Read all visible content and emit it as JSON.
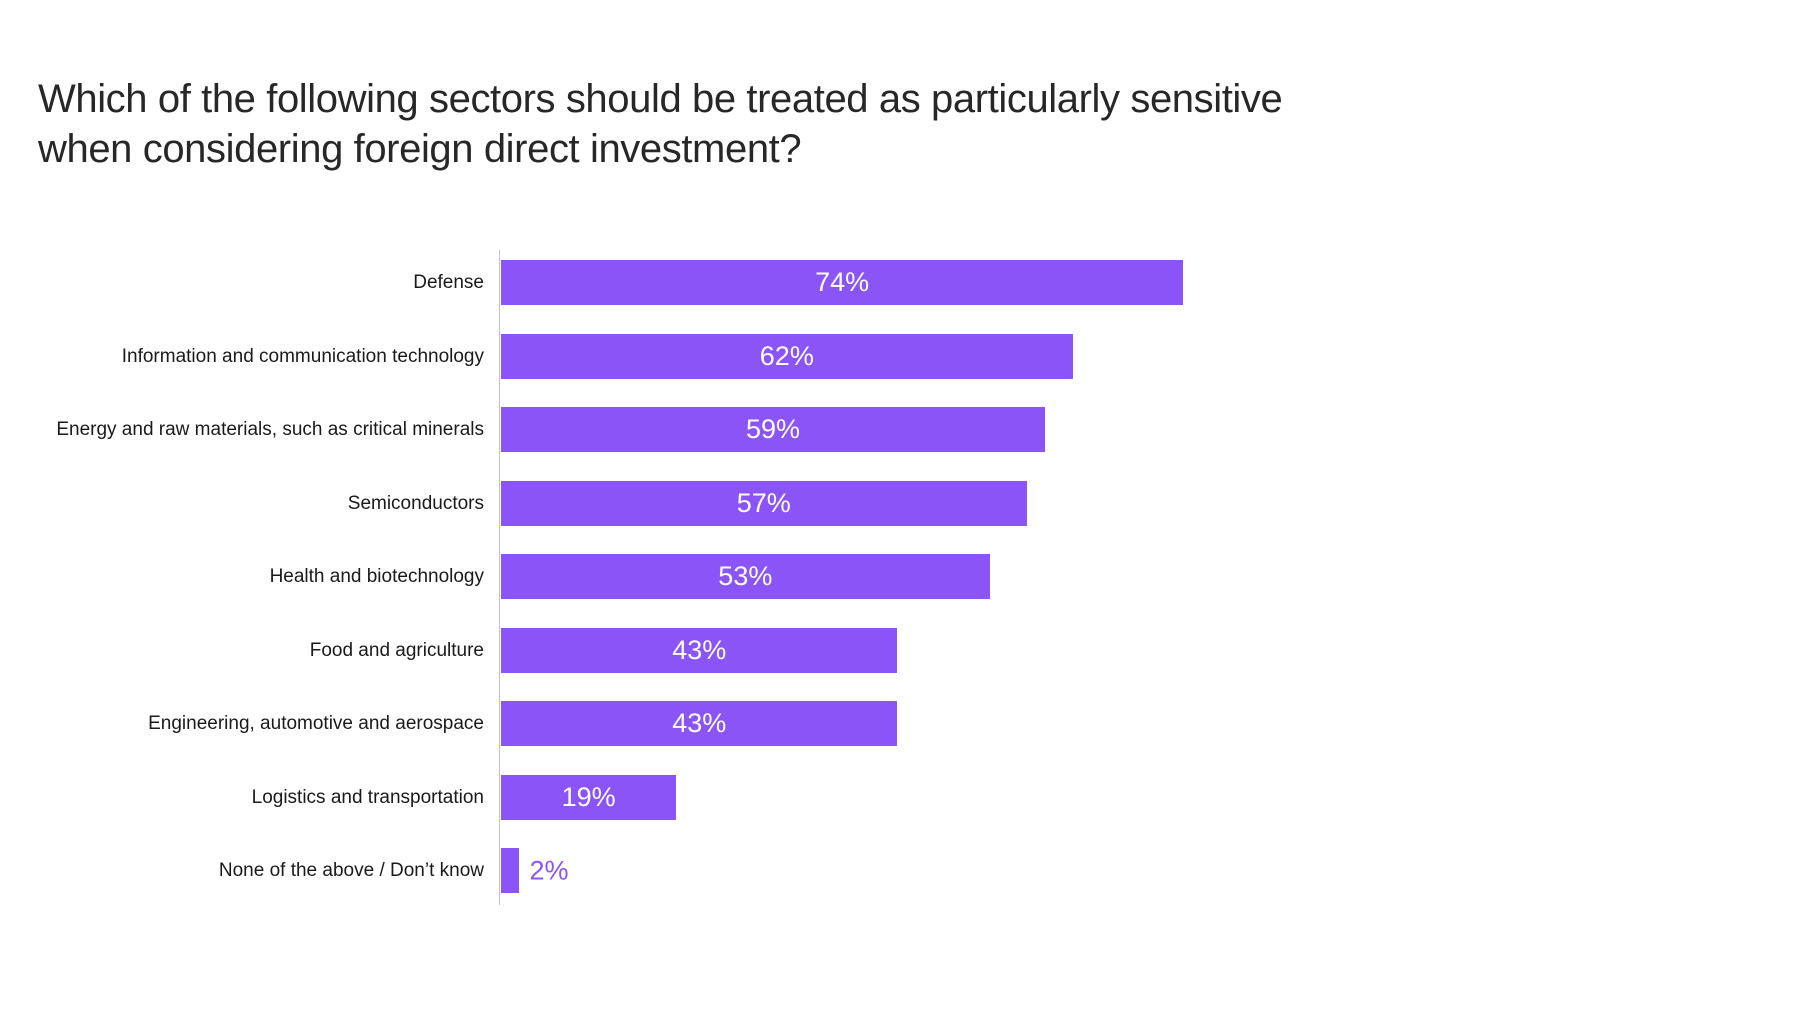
{
  "page": {
    "background": "#ffffff"
  },
  "title": {
    "lines": [
      "Which of the following sectors should be treated as particularly sensitive",
      "when considering foreign direct investment?"
    ],
    "color": "#272727"
  },
  "chart_data": {
    "type": "bar",
    "orientation": "horizontal",
    "title": "Which of the following sectors should be treated as particularly sensitive when considering foreign direct investment?",
    "categories": [
      "Defense",
      "Information and communication technology",
      "Energy and raw materials, such as critical minerals",
      "Semiconductors",
      "Health and biotechnology",
      "Food and agriculture",
      "Engineering, automotive and aerospace",
      "Logistics and transportation",
      "None of the above / Don’t know"
    ],
    "values": [
      74,
      62,
      59,
      57,
      53,
      43,
      43,
      19,
      2
    ],
    "value_labels": [
      "74%",
      "62%",
      "59%",
      "57%",
      "53%",
      "43%",
      "43%",
      "19%",
      "2%"
    ],
    "xlabel": "",
    "ylabel": "",
    "xlim": [
      0,
      100
    ],
    "grid": false,
    "legend": false,
    "bar_color": "#8B54F6",
    "value_label_inside_color": "#FFFFFF",
    "value_label_outside_color": "#8B54F6",
    "axis_line_color": "#C4C4C4",
    "category_label_color": "#1A1A1A"
  }
}
